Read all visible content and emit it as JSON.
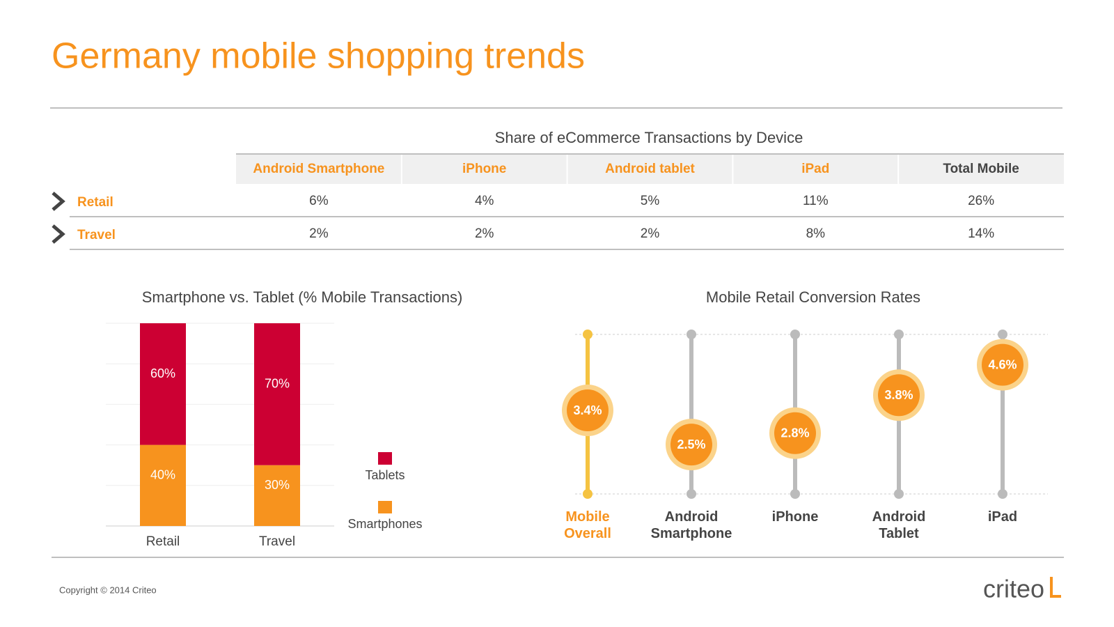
{
  "title": "Germany mobile shopping trends",
  "table": {
    "title": "Share of eCommerce Transactions by Device",
    "columns": [
      "Android Smartphone",
      "iPhone",
      "Android tablet",
      "iPad",
      "Total Mobile"
    ],
    "column_colors": [
      "#f7931e",
      "#f7931e",
      "#f7931e",
      "#f7931e",
      "#444444"
    ],
    "rows": [
      [
        "Retail",
        "6%",
        "4%",
        "5%",
        "11%",
        "26%"
      ],
      [
        "Travel",
        "2%",
        "2%",
        "2%",
        "8%",
        "14%"
      ]
    ]
  },
  "chart_data": [
    {
      "type": "stacked-bar",
      "title": "Smartphone vs. Tablet (% Mobile Transactions)",
      "categories": [
        "Retail",
        "Travel"
      ],
      "series": [
        {
          "name": "Smartphones",
          "color": "#f7931e",
          "values": [
            40,
            30
          ],
          "value_labels": [
            "40%",
            "30%"
          ]
        },
        {
          "name": "Tablets",
          "color": "#cc0033",
          "values": [
            60,
            70
          ],
          "value_labels": [
            "60%",
            "70%"
          ]
        }
      ],
      "ylim": [
        0,
        100
      ],
      "grid": true
    },
    {
      "type": "lollipop",
      "title": "Mobile Retail Conversion Rates",
      "categories": [
        "Mobile Overall",
        "Android Smartphone",
        "iPhone",
        "Android Tablet",
        "iPad"
      ],
      "values": [
        3.4,
        2.5,
        2.8,
        3.8,
        4.6
      ],
      "value_labels": [
        "3.4%",
        "2.5%",
        "2.8%",
        "3.8%",
        "4.6%"
      ],
      "color": "#f7931e",
      "stem_colors": [
        "#f5c342",
        "#bbbbbb",
        "#bbbbbb",
        "#bbbbbb",
        "#bbbbbb"
      ],
      "label_colors": [
        "#f7931e",
        "#444444",
        "#444444",
        "#444444",
        "#444444"
      ],
      "ylim": [
        1.2,
        5.4
      ]
    }
  ],
  "footer": {
    "copyright": "Copyright © 2014 Criteo",
    "logo": "criteo"
  }
}
